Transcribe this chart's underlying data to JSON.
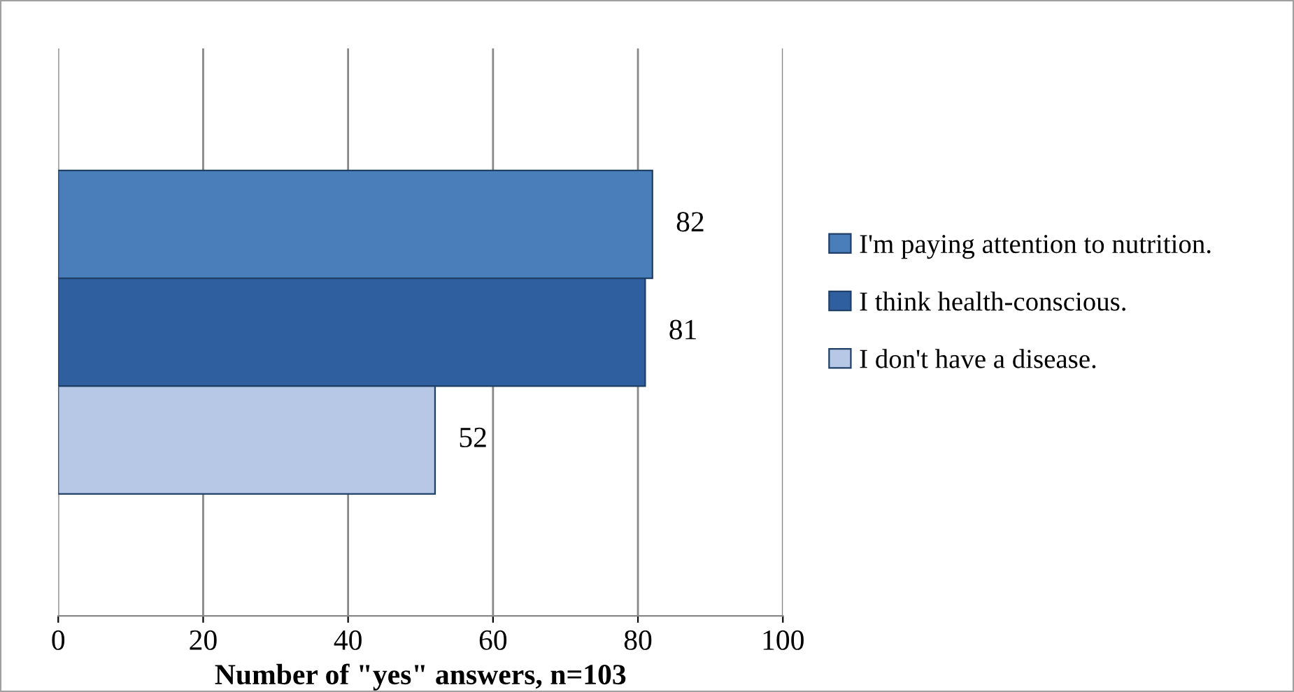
{
  "chart_data": {
    "type": "bar",
    "orientation": "horizontal",
    "categories": [
      null
    ],
    "series": [
      {
        "name": "I'm paying attention to nutrition.",
        "color": "#4a7ebb",
        "values": [
          82
        ]
      },
      {
        "name": "I think health-conscious.",
        "color": "#2f5f9e",
        "values": [
          81
        ]
      },
      {
        "name": "I don't have a disease.",
        "color": "#b7c8e6",
        "values": [
          52
        ]
      }
    ],
    "xlabel": "Number of \"yes\" answers, n=103",
    "xlim": [
      0,
      100
    ],
    "xticks": [
      0,
      20,
      40,
      60,
      80,
      100
    ],
    "grid": "x",
    "legend": "right",
    "data_labels": true,
    "tick_labels": "x"
  }
}
